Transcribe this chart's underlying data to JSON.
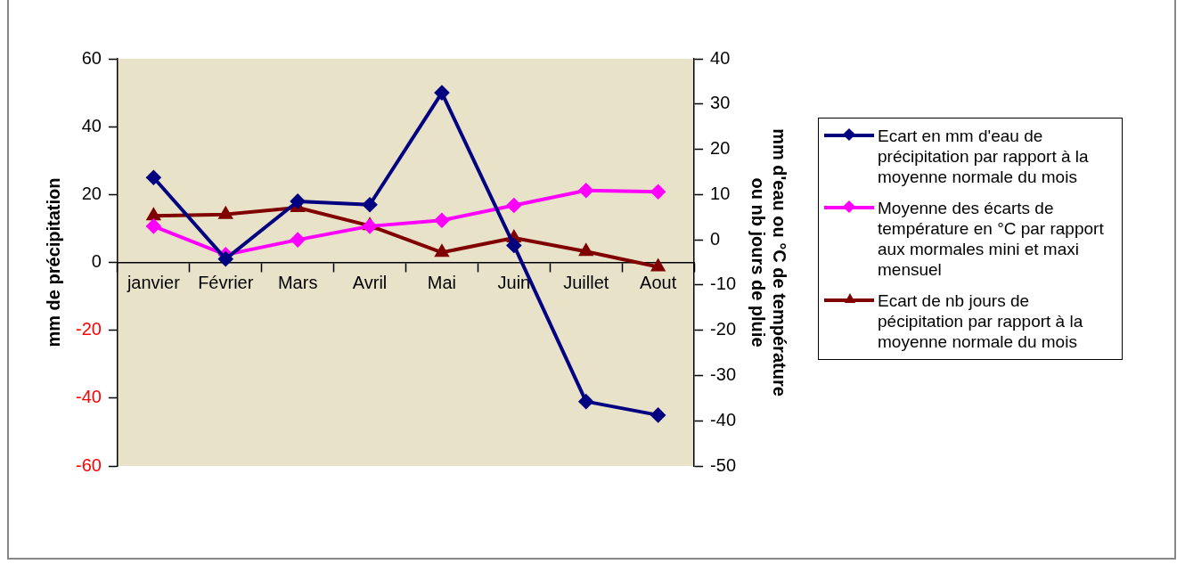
{
  "chart_data": {
    "type": "line",
    "categories": [
      "janvier",
      "Février",
      "Mars",
      "Avril",
      "Mai",
      "Juin",
      "Juillet",
      "Aout"
    ],
    "ylabel": "mm de précipitation",
    "y2label": "mm d'eau ou °C de température\nou nb jours de pluie",
    "ylim": [
      -60,
      60
    ],
    "yticks": [
      -60,
      -40,
      -20,
      0,
      20,
      40,
      60
    ],
    "y2lim": [
      -50,
      40
    ],
    "y2ticks": [
      -50,
      -40,
      -30,
      -20,
      -10,
      0,
      10,
      20,
      30,
      40
    ],
    "grid": false,
    "legend": "right",
    "line_style": "solid",
    "series": [
      {
        "name": "Ecart en mm d'eau de précipitation par rapport à la moyenne normale du mois",
        "color": "#000080",
        "marker": "diamond",
        "values": [
          25,
          1,
          18,
          17,
          50,
          5,
          -41,
          -45
        ]
      },
      {
        "name": "Moyenne des écarts de température en °C par rapport aux mormales mini et maxi mensuel",
        "color": "#ff00ff",
        "marker": "diamond",
        "axis": "y2",
        "values": [
          3,
          -3.3,
          0,
          3,
          4.3,
          7.6,
          10.9,
          10.6
        ]
      },
      {
        "name": "Ecart de nb jours de pécipitation par rapport à la moyenne normale du mois",
        "color": "#800000",
        "marker": "triangle",
        "axis": "y2",
        "values": [
          5.3,
          5.6,
          7.1,
          3.1,
          -2.8,
          0.4,
          -2.6,
          -6
        ]
      }
    ]
  }
}
